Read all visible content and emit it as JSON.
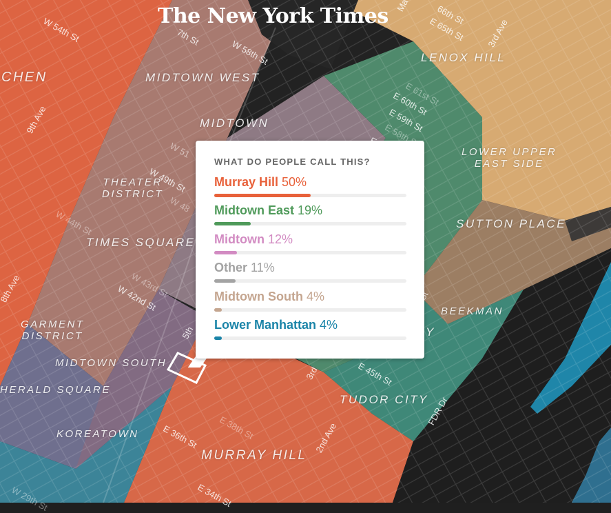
{
  "logo": "The New York Times",
  "neighborhoods": {
    "chen": "CHEN",
    "midtown_west": "MIDTOWN WEST",
    "midtown": "MIDTOWN",
    "lenox_hill": "LENOX HILL",
    "lower_upper_east_side_1": "LOWER UPPER",
    "lower_upper_east_side_2": "EAST SIDE",
    "theater_1": "THEATER",
    "theater_2": "DISTRICT",
    "times_square": "TIMES SQUARE",
    "sutton_place": "SUTTON PLACE",
    "garment_1": "GARMENT",
    "garment_2": "DISTRICT",
    "beekman": "BEEKMAN",
    "midtown_south": "MIDTOWN SOUTH",
    "herald_square": "HERALD SQUARE",
    "tudor_city": "TUDOR CITY",
    "koreatown": "KOREATOWN",
    "murray_hill": "MURRAY HILL",
    "partial_y": "Y"
  },
  "streets": {
    "w54": "W 54th St",
    "w57": "7th St",
    "w58": "W 58th St",
    "e65": "E 65th St",
    "e66": "66th St",
    "madison": "Ma",
    "third_ave_top": "3rd Ave",
    "ninth_ave": "9th Ave",
    "e60": "E 60th St",
    "e59": "E 59th St",
    "e58": "E 58th St",
    "e61": "E 61st St",
    "e57": "E 5",
    "w51": "W 51",
    "w49": "W 49th St",
    "w48": "W 48",
    "w44": "W 44th St",
    "w43": "W 43rd St",
    "w42": "W 42nd St",
    "eighth_ave": "8th Ave",
    "fifth_ave": "5th",
    "third_ave": "3rd",
    "e45": "E 45th St",
    "fdr": "FDR Dr",
    "e36": "E 36th St",
    "e38": "E 38th St",
    "second_ave": "2nd Ave",
    "e34": "E 34th St",
    "w29": "W 29th St",
    "st_fragment": "St"
  },
  "popup": {
    "question": "WHAT DO PEOPLE CALL THIS?",
    "answers": [
      {
        "name": "Murray Hill",
        "pct": "50%",
        "value": 0.5,
        "color": "#e8613a"
      },
      {
        "name": "Midtown East",
        "pct": "19%",
        "value": 0.19,
        "color": "#4f9a5a"
      },
      {
        "name": "Midtown",
        "pct": "12%",
        "value": 0.12,
        "color": "#d28bc2"
      },
      {
        "name": "Other",
        "pct": "11%",
        "value": 0.11,
        "color": "#a3a3a3"
      },
      {
        "name": "Midtown South",
        "pct": "4%",
        "value": 0.04,
        "color": "#c4a58f"
      },
      {
        "name": "Lower Manhattan",
        "pct": "4%",
        "value": 0.04,
        "color": "#1a84a8"
      }
    ]
  }
}
